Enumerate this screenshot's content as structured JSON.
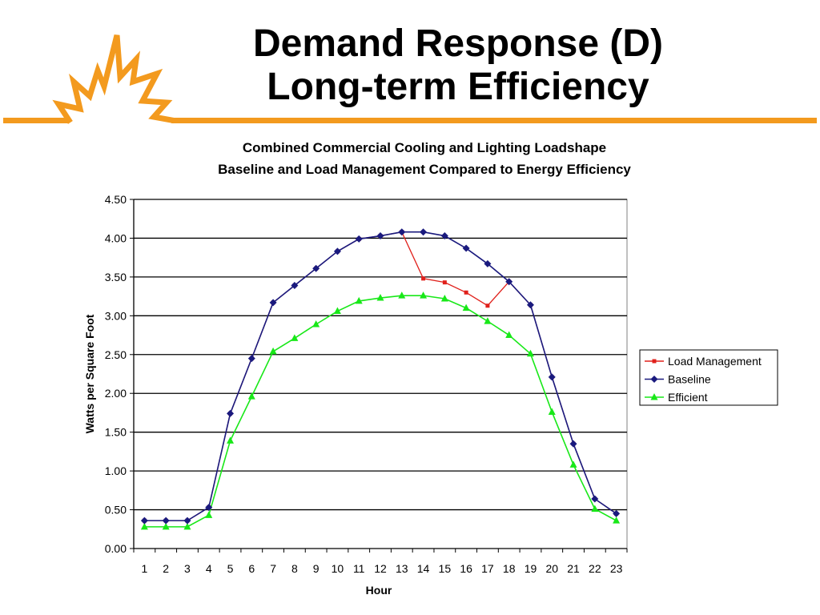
{
  "slide": {
    "title_line1": "Demand Response (D)",
    "title_line2": "Long-term Efficiency"
  },
  "colors": {
    "accent": "#f39a1e",
    "load_management": "#e0201b",
    "baseline": "#1a1a7e",
    "efficient": "#18e818"
  },
  "chart_data": {
    "type": "line",
    "title": "Combined Commercial Cooling and Lighting Loadshape",
    "subtitle": "Baseline and Load Management Compared to Energy Efficiency",
    "xlabel": "Hour",
    "ylabel": "Watts per Square Foot",
    "ylim": [
      0,
      4.5
    ],
    "y_ticks": [
      "0.00",
      "0.50",
      "1.00",
      "1.50",
      "2.00",
      "2.50",
      "3.00",
      "3.50",
      "4.00",
      "4.50"
    ],
    "categories": [
      "1",
      "2",
      "3",
      "4",
      "5",
      "6",
      "7",
      "8",
      "9",
      "10",
      "11",
      "12",
      "13",
      "14",
      "15",
      "16",
      "17",
      "18",
      "19",
      "20",
      "21",
      "22",
      "23"
    ],
    "grid": true,
    "legend_position": "right",
    "series": [
      {
        "name": "Load Management",
        "marker": "square",
        "color": "#e0201b",
        "values": [
          0.36,
          0.36,
          0.36,
          0.53,
          1.74,
          2.45,
          3.17,
          3.39,
          3.61,
          3.83,
          3.99,
          4.03,
          4.08,
          3.48,
          3.43,
          3.3,
          3.13,
          3.44,
          3.14,
          2.21,
          1.35,
          0.64,
          0.45
        ]
      },
      {
        "name": "Baseline",
        "marker": "diamond",
        "color": "#1a1a7e",
        "values": [
          0.36,
          0.36,
          0.36,
          0.53,
          1.74,
          2.45,
          3.17,
          3.39,
          3.61,
          3.83,
          3.99,
          4.03,
          4.08,
          4.08,
          4.03,
          3.87,
          3.67,
          3.44,
          3.14,
          2.21,
          1.35,
          0.64,
          0.45
        ]
      },
      {
        "name": "Efficient",
        "marker": "triangle",
        "color": "#18e818",
        "values": [
          0.28,
          0.28,
          0.28,
          0.43,
          1.39,
          1.96,
          2.54,
          2.71,
          2.89,
          3.06,
          3.19,
          3.23,
          3.26,
          3.26,
          3.22,
          3.1,
          2.93,
          2.75,
          2.51,
          1.76,
          1.08,
          0.51,
          0.36
        ]
      }
    ]
  }
}
